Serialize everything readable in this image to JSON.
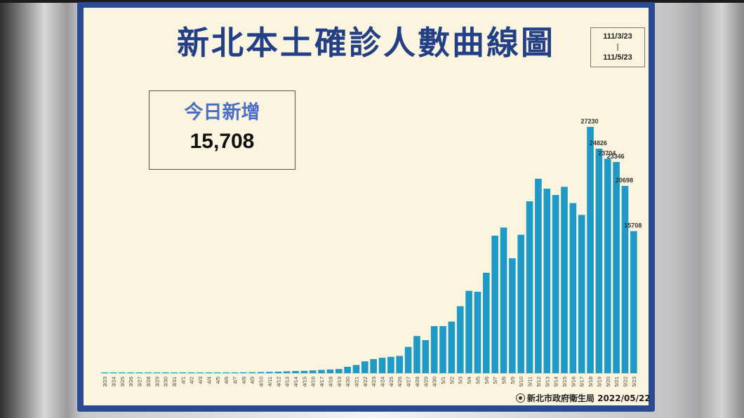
{
  "title": "新北本土確診人數曲線圖",
  "date_range": {
    "start": "111/3/23",
    "separator": "|",
    "end": "111/5/23"
  },
  "summary": {
    "label": "今日新增",
    "value": "15,708"
  },
  "footer": "新北市政府衛生局 2022/05/22",
  "colors": {
    "bar": "#1f9ac7",
    "title": "#233f85",
    "frame": "#2b4a94",
    "panel": "#fbf5df",
    "label": "#4a6fc4"
  },
  "chart_data": {
    "type": "bar",
    "title": "新北本土確診人數曲線圖",
    "xlabel": "",
    "ylabel": "",
    "ylim": [
      0,
      28000
    ],
    "grid": false,
    "categories": [
      "3/23",
      "3/24",
      "3/25",
      "3/26",
      "3/27",
      "3/28",
      "3/29",
      "3/30",
      "3/31",
      "4/1",
      "4/2",
      "4/3",
      "4/4",
      "4/5",
      "4/6",
      "4/7",
      "4/8",
      "4/9",
      "4/10",
      "4/11",
      "4/12",
      "4/13",
      "4/14",
      "4/15",
      "4/16",
      "4/17",
      "4/18",
      "4/19",
      "4/20",
      "4/21",
      "4/22",
      "4/23",
      "4/24",
      "4/25",
      "4/26",
      "4/27",
      "4/28",
      "4/29",
      "4/30",
      "5/1",
      "5/2",
      "5/3",
      "5/4",
      "5/5",
      "5/6",
      "5/7",
      "5/8",
      "5/9",
      "5/10",
      "5/11",
      "5/12",
      "5/13",
      "5/14",
      "5/15",
      "5/16",
      "5/17",
      "5/18",
      "5/19",
      "5/20",
      "5/21",
      "5/22",
      "5/23"
    ],
    "values": [
      5,
      5,
      5,
      5,
      5,
      5,
      5,
      5,
      5,
      20,
      40,
      45,
      50,
      60,
      70,
      80,
      90,
      100,
      120,
      140,
      160,
      200,
      230,
      250,
      300,
      350,
      400,
      450,
      700,
      900,
      1300,
      1550,
      1700,
      1800,
      1900,
      2900,
      4100,
      3650,
      5200,
      5200,
      5700,
      7400,
      9100,
      9000,
      11100,
      15200,
      16100,
      12700,
      15300,
      19000,
      21500,
      20400,
      19700,
      20600,
      18800,
      17500,
      27230,
      24826,
      23704,
      23346,
      20698,
      15708
    ],
    "data_labels": [
      {
        "category": "5/18",
        "text": "27230"
      },
      {
        "category": "5/19",
        "text": "24826"
      },
      {
        "category": "5/20",
        "text": "23704"
      },
      {
        "category": "5/21",
        "text": "23346"
      },
      {
        "category": "5/22",
        "text": "20698"
      },
      {
        "category": "5/23",
        "text": "15708"
      }
    ]
  }
}
